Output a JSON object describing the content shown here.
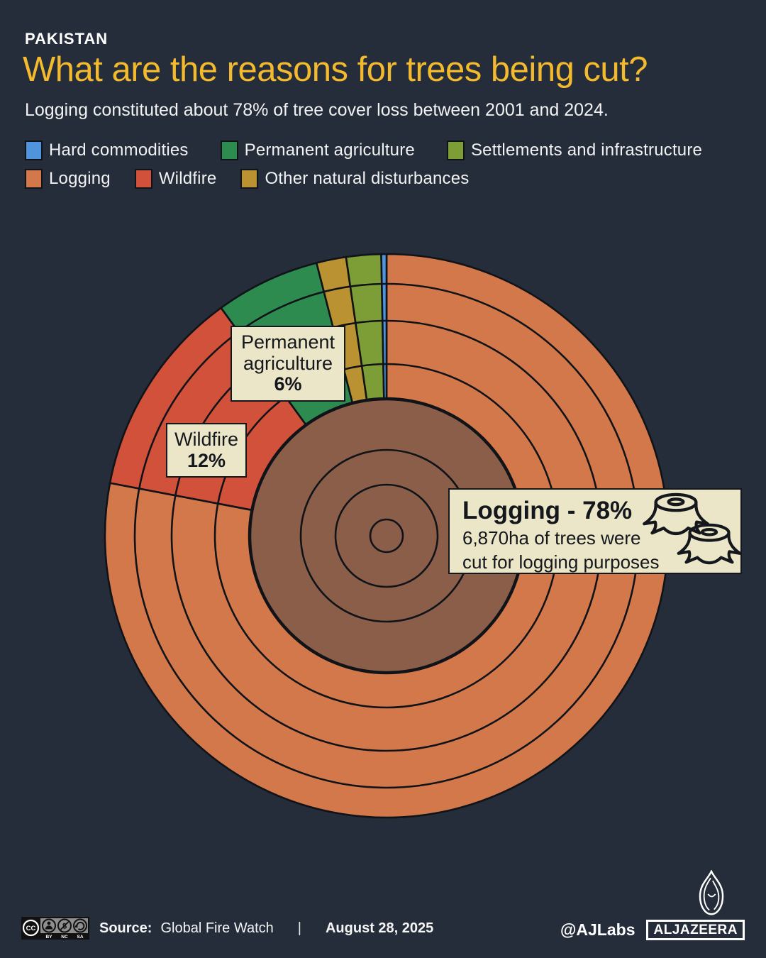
{
  "header": {
    "kicker": "PAKISTAN",
    "title": "What are the reasons for trees being cut?",
    "subtitle": "Logging constituted about 78% of tree cover loss between 2001 and 2024."
  },
  "legend": {
    "row1": [
      {
        "label": "Hard commodities",
        "color": "#4f94dd"
      },
      {
        "label": "Permanent agriculture",
        "color": "#2e8b4f"
      },
      {
        "label": "Settlements and infrastructure",
        "color": "#7d9e36"
      }
    ],
    "row2": [
      {
        "label": "Logging",
        "color": "#d3784a"
      },
      {
        "label": "Wildfire",
        "color": "#d1513a"
      },
      {
        "label": "Other natural disturbances",
        "color": "#bb9231"
      }
    ]
  },
  "chart_data": {
    "type": "pie",
    "style": "tree-ring (stump cross-section) pie chart, segments start at 12 o'clock going clockwise",
    "title": "What are the reasons for trees being cut?",
    "unit": "% of tree cover loss 2001-2024",
    "segments": [
      {
        "label": "Logging",
        "value": 78,
        "color": "#d3784a"
      },
      {
        "label": "Wildfire",
        "value": 12,
        "color": "#d1513a"
      },
      {
        "label": "Permanent agriculture",
        "value": 6,
        "color": "#2e8b4f"
      },
      {
        "label": "Other natural disturbances",
        "value": 1.7,
        "color": "#bb9231"
      },
      {
        "label": "Settlements and infrastructure",
        "value": 2,
        "color": "#7d9e36"
      },
      {
        "label": "Hard commodities",
        "value": 0.3,
        "color": "#4f94dd"
      }
    ],
    "core_color": "#8b5e4a",
    "legend_position": "top",
    "annotations": [
      "Permanent agriculture 6%",
      "Wildfire 12%",
      "Logging - 78% : 6,870ha of trees were cut for logging purposes"
    ]
  },
  "callouts": {
    "permanent_agriculture": {
      "line1": "Permanent",
      "line2": "agriculture",
      "value": "6%"
    },
    "wildfire": {
      "label": "Wildfire",
      "value": "12%"
    },
    "logging": {
      "title": "Logging - 78%",
      "body_line1": "6,870ha of trees were",
      "body_line2": "cut for logging purposes"
    }
  },
  "footer": {
    "license_cc": "CC",
    "license_labels": [
      "BY",
      "NC",
      "SA"
    ],
    "source_label": "Source:",
    "source_value": "Global Fire Watch",
    "separator": "|",
    "date": "August 28, 2025",
    "credit": "@AJLabs",
    "brand": "ALJAZEERA"
  }
}
